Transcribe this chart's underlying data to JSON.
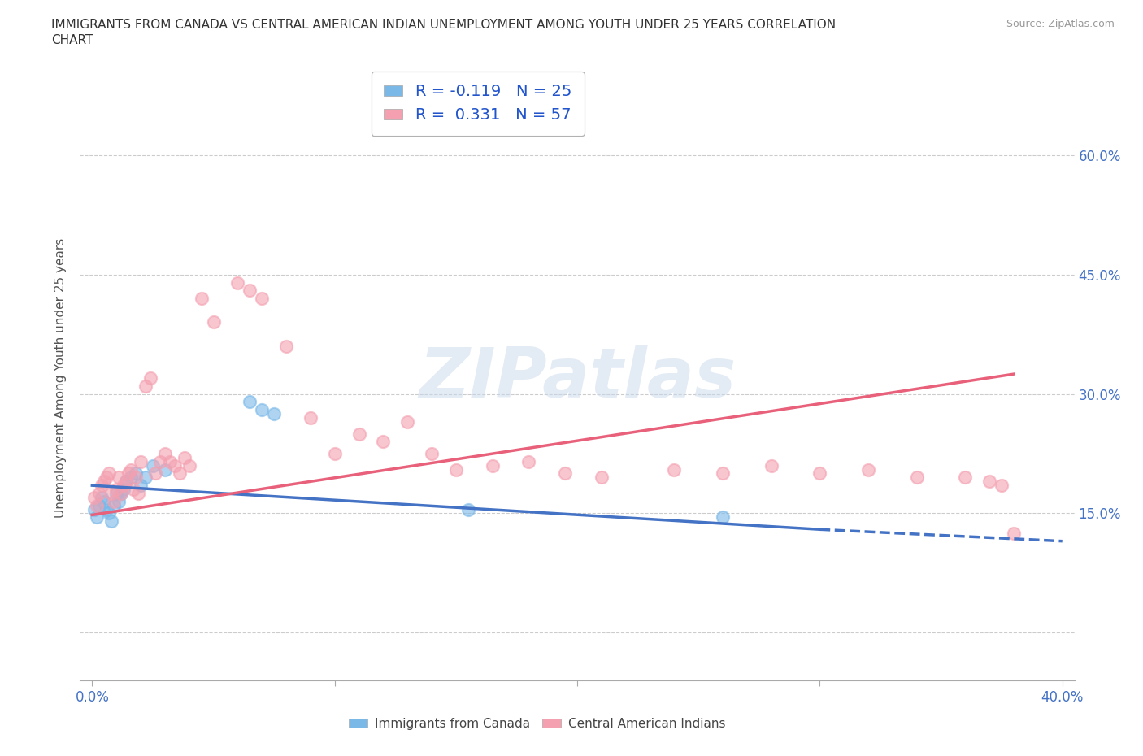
{
  "title_line1": "IMMIGRANTS FROM CANADA VS CENTRAL AMERICAN INDIAN UNEMPLOYMENT AMONG YOUTH UNDER 25 YEARS CORRELATION",
  "title_line2": "CHART",
  "source_text": "Source: ZipAtlas.com",
  "ylabel": "Unemployment Among Youth under 25 years",
  "watermark": "ZIPatlas",
  "legend_r1": "R = -0.119",
  "legend_n1": "N = 25",
  "legend_r2": "R =  0.331",
  "legend_n2": "N = 57",
  "color_canada": "#7ab8e8",
  "color_ca_indian": "#f4a0b0",
  "trendline_canada_color": "#4472c4",
  "trendline_ca_indian_color": "#e8607a",
  "background_color": "#ffffff",
  "grid_color": "#cccccc",
  "canada_scatter": {
    "x": [
      0.001,
      0.002,
      0.003,
      0.004,
      0.005,
      0.006,
      0.007,
      0.008,
      0.009,
      0.01,
      0.011,
      0.012,
      0.013,
      0.014,
      0.016,
      0.018,
      0.02,
      0.022,
      0.025,
      0.03,
      0.065,
      0.07,
      0.075,
      0.155,
      0.26
    ],
    "y": [
      0.155,
      0.145,
      0.16,
      0.17,
      0.165,
      0.155,
      0.15,
      0.14,
      0.16,
      0.175,
      0.165,
      0.175,
      0.18,
      0.19,
      0.195,
      0.2,
      0.185,
      0.195,
      0.21,
      0.205,
      0.29,
      0.28,
      0.275,
      0.155,
      0.145
    ]
  },
  "ca_indian_scatter": {
    "x": [
      0.001,
      0.002,
      0.003,
      0.004,
      0.005,
      0.006,
      0.007,
      0.008,
      0.009,
      0.01,
      0.011,
      0.012,
      0.013,
      0.014,
      0.015,
      0.016,
      0.017,
      0.018,
      0.019,
      0.02,
      0.022,
      0.024,
      0.026,
      0.028,
      0.03,
      0.032,
      0.034,
      0.036,
      0.038,
      0.04,
      0.045,
      0.05,
      0.06,
      0.065,
      0.07,
      0.08,
      0.09,
      0.1,
      0.11,
      0.12,
      0.13,
      0.14,
      0.15,
      0.165,
      0.18,
      0.195,
      0.21,
      0.24,
      0.26,
      0.28,
      0.3,
      0.32,
      0.34,
      0.36,
      0.37,
      0.375,
      0.38
    ],
    "y": [
      0.17,
      0.16,
      0.175,
      0.185,
      0.19,
      0.195,
      0.2,
      0.175,
      0.165,
      0.18,
      0.195,
      0.175,
      0.185,
      0.19,
      0.2,
      0.205,
      0.18,
      0.195,
      0.175,
      0.215,
      0.31,
      0.32,
      0.2,
      0.215,
      0.225,
      0.215,
      0.21,
      0.2,
      0.22,
      0.21,
      0.42,
      0.39,
      0.44,
      0.43,
      0.42,
      0.36,
      0.27,
      0.225,
      0.25,
      0.24,
      0.265,
      0.225,
      0.205,
      0.21,
      0.215,
      0.2,
      0.195,
      0.205,
      0.2,
      0.21,
      0.2,
      0.205,
      0.195,
      0.195,
      0.19,
      0.185,
      0.125
    ]
  },
  "canada_trend_x": [
    0.0,
    0.38
  ],
  "canada_trend_y_start": 0.185,
  "canada_trend_y_end": 0.115,
  "ca_trend_x": [
    0.0,
    0.38
  ],
  "ca_trend_y_start": 0.148,
  "ca_trend_y_end": 0.325,
  "xlim": [
    -0.005,
    0.405
  ],
  "ylim": [
    -0.06,
    0.7
  ],
  "xticks": [
    0.0,
    0.1,
    0.2,
    0.3,
    0.4
  ],
  "xticklabels": [
    "0.0%",
    "",
    "",
    "",
    "40.0%"
  ],
  "yticks": [
    0.0,
    0.15,
    0.3,
    0.45,
    0.6
  ],
  "ytick_labels_right": [
    "",
    "15.0%",
    "30.0%",
    "45.0%",
    "60.0%"
  ]
}
